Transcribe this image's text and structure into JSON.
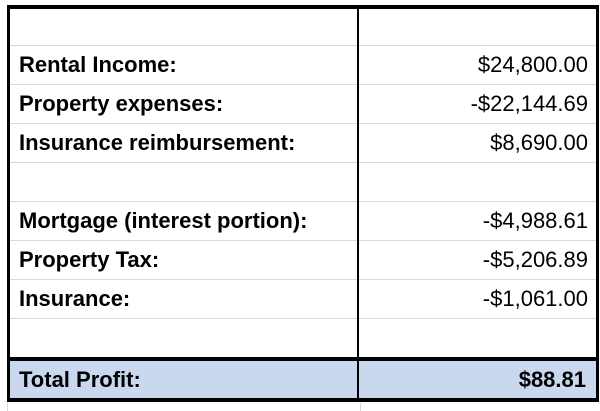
{
  "sheet": {
    "rows": [
      {
        "label": "",
        "value": ""
      },
      {
        "label": "Rental Income:",
        "value": "$24,800.00"
      },
      {
        "label": "Property expenses:",
        "value": "-$22,144.69"
      },
      {
        "label": "Insurance reimbursement:",
        "value": "$8,690.00"
      },
      {
        "label": "",
        "value": ""
      },
      {
        "label": "Mortgage (interest portion):",
        "value": "-$4,988.61"
      },
      {
        "label": "Property Tax:",
        "value": "-$5,206.89"
      },
      {
        "label": "Insurance:",
        "value": "-$1,061.00"
      },
      {
        "label": "",
        "value": ""
      }
    ],
    "total": {
      "label": "Total Profit:",
      "value": "$88.81"
    }
  },
  "colors": {
    "total_row_fill": "#c9d7ef",
    "border": "#000000",
    "gridline": "#d9d9d9"
  }
}
